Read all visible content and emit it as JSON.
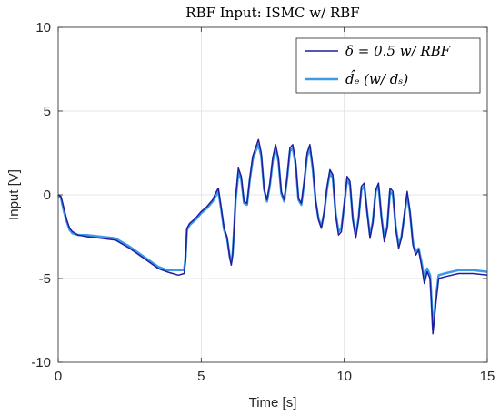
{
  "chart_data": {
    "type": "line",
    "title": "RBF Input: ISMC w/ RBF",
    "xlabel": "Time [s]",
    "ylabel": "Input [V]",
    "xlim": [
      0,
      15
    ],
    "ylim": [
      -10,
      10
    ],
    "xticks": [
      0,
      5,
      10,
      15
    ],
    "yticks": [
      -10,
      -5,
      0,
      5,
      10
    ],
    "xtick_labels": [
      "0",
      "5",
      "10",
      "15"
    ],
    "ytick_labels": [
      "-10",
      "-5",
      "0",
      "5",
      "10"
    ],
    "grid": true,
    "legend_position": "top-right",
    "series": [
      {
        "name": "δ = 0.5  w/ RBF",
        "color": "#1f1f9e",
        "x": [
          0,
          0.1,
          0.2,
          0.3,
          0.4,
          0.5,
          0.7,
          1.0,
          1.5,
          2.0,
          2.5,
          3.0,
          3.5,
          3.8,
          4.0,
          4.2,
          4.4,
          4.45,
          4.5,
          4.6,
          4.8,
          5.0,
          5.2,
          5.4,
          5.5,
          5.6,
          5.7,
          5.8,
          5.9,
          6.0,
          6.05,
          6.1,
          6.15,
          6.2,
          6.3,
          6.4,
          6.5,
          6.6,
          6.7,
          6.8,
          6.9,
          7.0,
          7.1,
          7.2,
          7.3,
          7.4,
          7.5,
          7.6,
          7.7,
          7.8,
          7.9,
          8.0,
          8.1,
          8.2,
          8.3,
          8.4,
          8.5,
          8.6,
          8.7,
          8.8,
          8.9,
          9.0,
          9.1,
          9.2,
          9.3,
          9.4,
          9.5,
          9.6,
          9.7,
          9.8,
          9.9,
          10.0,
          10.1,
          10.2,
          10.3,
          10.4,
          10.5,
          10.6,
          10.7,
          10.8,
          10.9,
          11.0,
          11.1,
          11.2,
          11.3,
          11.4,
          11.5,
          11.6,
          11.7,
          11.8,
          11.9,
          12.0,
          12.1,
          12.2,
          12.3,
          12.4,
          12.5,
          12.6,
          12.7,
          12.8,
          12.9,
          13.0,
          13.05,
          13.1,
          13.2,
          13.3,
          13.5,
          14.0,
          14.5,
          15.0
        ],
        "y": [
          0,
          -0.1,
          -0.8,
          -1.5,
          -2.0,
          -2.2,
          -2.4,
          -2.5,
          -2.6,
          -2.7,
          -3.2,
          -3.8,
          -4.4,
          -4.6,
          -4.7,
          -4.8,
          -4.7,
          -4.0,
          -2.0,
          -1.7,
          -1.4,
          -1.0,
          -0.7,
          -0.3,
          0.1,
          0.4,
          -0.8,
          -2.0,
          -2.5,
          -3.8,
          -4.2,
          -3.6,
          -2.0,
          -0.2,
          1.6,
          1.1,
          -0.4,
          -0.5,
          1.0,
          2.3,
          2.8,
          3.3,
          2.5,
          0.3,
          -0.3,
          0.7,
          2.2,
          3.0,
          2.2,
          0.2,
          -0.3,
          1.0,
          2.8,
          3.0,
          2.0,
          -0.2,
          -0.5,
          0.8,
          2.5,
          3.0,
          1.7,
          -0.3,
          -1.5,
          -2.0,
          -1.0,
          0.5,
          1.5,
          1.2,
          -1.2,
          -2.4,
          -2.2,
          -0.5,
          1.1,
          0.8,
          -1.5,
          -2.6,
          -1.5,
          0.5,
          0.7,
          -1.0,
          -2.6,
          -1.7,
          0.3,
          0.7,
          -1.4,
          -2.8,
          -2.0,
          0.4,
          0.2,
          -2.0,
          -3.2,
          -2.6,
          -1.2,
          0.2,
          -1.0,
          -3.0,
          -3.6,
          -3.3,
          -4.2,
          -5.3,
          -4.6,
          -5.0,
          -6.5,
          -8.3,
          -6.5,
          -5.0,
          -4.9,
          -4.7,
          -4.7,
          -4.8
        ]
      },
      {
        "name": "d̂ₑ (w/ dₛ)",
        "color": "#3d9ae8",
        "x": [
          0,
          0.1,
          0.2,
          0.3,
          0.4,
          0.5,
          0.7,
          1.0,
          1.5,
          2.0,
          2.5,
          3.0,
          3.5,
          3.8,
          4.0,
          4.2,
          4.4,
          4.45,
          4.5,
          4.6,
          4.8,
          5.0,
          5.2,
          5.4,
          5.5,
          5.6,
          5.7,
          5.8,
          5.9,
          6.0,
          6.05,
          6.1,
          6.15,
          6.2,
          6.3,
          6.4,
          6.5,
          6.6,
          6.7,
          6.8,
          6.9,
          7.0,
          7.1,
          7.2,
          7.3,
          7.4,
          7.5,
          7.6,
          7.7,
          7.8,
          7.9,
          8.0,
          8.1,
          8.2,
          8.3,
          8.4,
          8.5,
          8.6,
          8.7,
          8.8,
          8.9,
          9.0,
          9.1,
          9.2,
          9.3,
          9.4,
          9.5,
          9.6,
          9.7,
          9.8,
          9.9,
          10.0,
          10.1,
          10.2,
          10.3,
          10.4,
          10.5,
          10.6,
          10.7,
          10.8,
          10.9,
          11.0,
          11.1,
          11.2,
          11.3,
          11.4,
          11.5,
          11.6,
          11.7,
          11.8,
          11.9,
          12.0,
          12.1,
          12.2,
          12.3,
          12.4,
          12.5,
          12.6,
          12.7,
          12.8,
          12.9,
          13.0,
          13.05,
          13.1,
          13.2,
          13.3,
          13.5,
          14.0,
          14.5,
          15.0
        ],
        "y": [
          0,
          -0.2,
          -1.0,
          -1.6,
          -2.1,
          -2.3,
          -2.4,
          -2.4,
          -2.5,
          -2.6,
          -3.1,
          -3.7,
          -4.3,
          -4.5,
          -4.5,
          -4.5,
          -4.5,
          -3.8,
          -2.1,
          -1.8,
          -1.5,
          -1.1,
          -0.8,
          -0.4,
          -0.1,
          0.2,
          -0.9,
          -2.1,
          -2.6,
          -3.7,
          -4.0,
          -3.5,
          -2.1,
          -0.4,
          1.3,
          0.9,
          -0.5,
          -0.6,
          0.9,
          2.1,
          2.6,
          3.0,
          2.3,
          0.3,
          -0.4,
          0.6,
          2.0,
          2.8,
          2.0,
          0.1,
          -0.4,
          0.9,
          2.6,
          2.8,
          1.8,
          -0.3,
          -0.6,
          0.7,
          2.3,
          2.8,
          1.5,
          -0.4,
          -1.4,
          -1.9,
          -1.1,
          0.4,
          1.3,
          1.0,
          -1.1,
          -2.2,
          -2.0,
          -0.6,
          0.9,
          0.6,
          -1.4,
          -2.4,
          -1.4,
          0.3,
          0.5,
          -1.0,
          -2.4,
          -1.6,
          0.2,
          0.5,
          -1.3,
          -2.6,
          -1.9,
          0.2,
          0.0,
          -1.9,
          -3.0,
          -2.5,
          -1.3,
          0.0,
          -1.1,
          -2.8,
          -3.4,
          -3.2,
          -4.0,
          -5.0,
          -4.4,
          -4.8,
          -6.2,
          -8.0,
          -6.2,
          -4.8,
          -4.7,
          -4.5,
          -4.5,
          -4.6
        ]
      }
    ]
  }
}
